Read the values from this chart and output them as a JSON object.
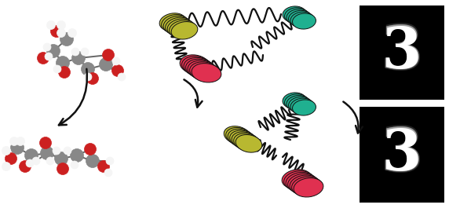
{
  "background_color": "#ffffff",
  "molecule_color_carbon": "#888888",
  "molecule_color_oxygen": "#cc2020",
  "molecule_color_hydrogen": "#f5f5f5",
  "disc_colors": {
    "yellow": "#b8b830",
    "red": "#e03050",
    "teal": "#20b090"
  },
  "arrow_color": "#111111",
  "spring_color": "#111111",
  "disc_outline": "#111111",
  "bond_color": "#666666"
}
